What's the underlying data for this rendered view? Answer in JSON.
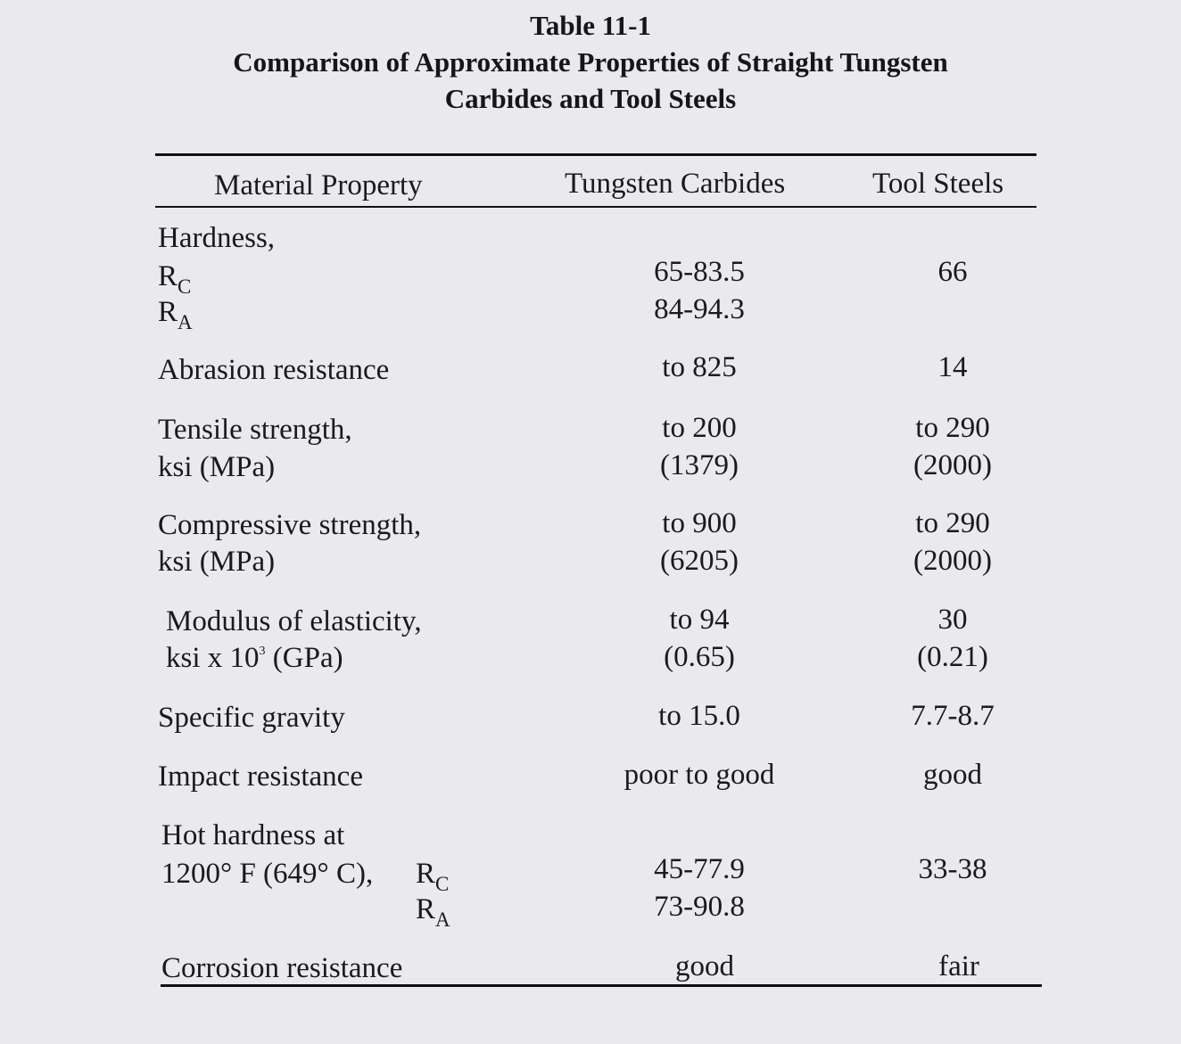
{
  "title": {
    "line1": "Table 11-1",
    "line2": "Comparison of Approximate Properties of Straight Tungsten",
    "line3": "Carbides and Tool Steels"
  },
  "headers": {
    "property": "Material Property",
    "tungsten": "Tungsten Carbides",
    "tool": "Tool Steels"
  },
  "rows": {
    "hardness": {
      "label": "Hardness,",
      "rc_main": "R",
      "rc_sub": "C",
      "ra_main": "R",
      "ra_sub": "A",
      "tungsten_rc": "65-83.5",
      "tool_rc": "66",
      "tungsten_ra": "84-94.3"
    },
    "abrasion": {
      "label": "Abrasion resistance",
      "tungsten": "to 825",
      "tool": "14"
    },
    "tensile": {
      "label": "Tensile strength,",
      "unit": "ksi (MPa)",
      "tungsten1": "to 200",
      "tungsten2": "(1379)",
      "tool1": "to 290",
      "tool2": "(2000)"
    },
    "compressive": {
      "label": "Compressive strength,",
      "unit": "ksi (MPa)",
      "tungsten1": "to 900",
      "tungsten2": "(6205)",
      "tool1": "to 290",
      "tool2": "(2000)"
    },
    "modulus": {
      "label": "Modulus of elasticity,",
      "unit_a": "ksi x 10",
      "unit_exp": "3",
      "unit_b": " (GPa)",
      "tungsten1": "to 94",
      "tungsten2": "(0.65)",
      "tool1": "30",
      "tool2": "(0.21)"
    },
    "gravity": {
      "label": "Specific gravity",
      "tungsten": "to 15.0",
      "tool": "7.7-8.7"
    },
    "impact": {
      "label": "Impact resistance",
      "tungsten": "poor to good",
      "tool": "good"
    },
    "hot": {
      "label1": "Hot hardness at",
      "label2": "1200° F (649° C),",
      "rc_main": "R",
      "rc_sub": "C",
      "ra_main": "R",
      "ra_sub": "A",
      "tungsten_rc": "45-77.9",
      "tool_rc": "33-38",
      "tungsten_ra": "73-90.8"
    },
    "corrosion": {
      "label": "Corrosion resistance",
      "tungsten": "good",
      "tool": "fair"
    }
  }
}
